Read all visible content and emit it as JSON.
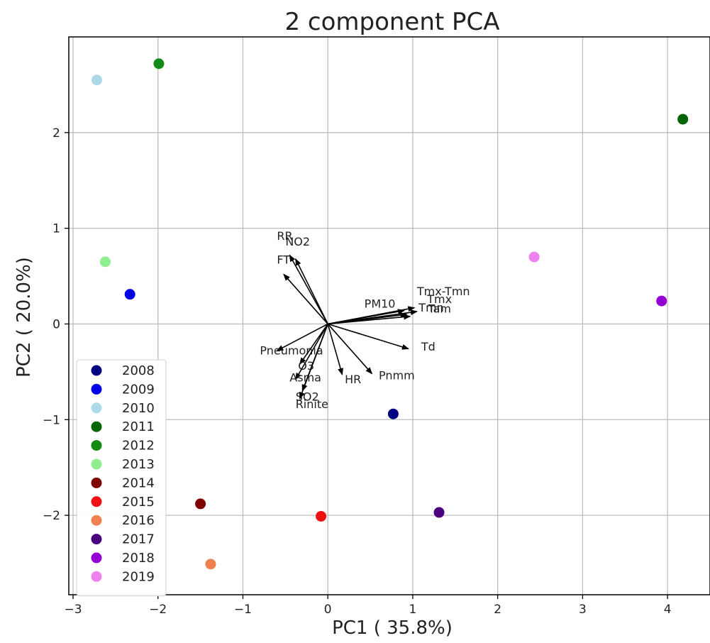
{
  "chart_data": {
    "type": "scatter",
    "title": "2 component PCA",
    "xlabel": "PC1 ( 35.8%)",
    "ylabel": "PC2 ( 20.0%)",
    "xlim": [
      -3.05,
      4.5
    ],
    "ylim": [
      -2.83,
      3.0
    ],
    "x_ticks": [
      -3,
      -2,
      -1,
      0,
      1,
      2,
      3,
      4
    ],
    "y_ticks": [
      -2,
      -1,
      0,
      1,
      2
    ],
    "grid": true,
    "legend_position": "bottom-left",
    "points": [
      {
        "label": "2008",
        "x": 0.77,
        "y": -0.94,
        "color": "#000080"
      },
      {
        "label": "2009",
        "x": -2.33,
        "y": 0.31,
        "color": "#0000e6"
      },
      {
        "label": "2010",
        "x": -2.72,
        "y": 2.55,
        "color": "#add8e6"
      },
      {
        "label": "2011",
        "x": 4.18,
        "y": 2.14,
        "color": "#006400"
      },
      {
        "label": "2012",
        "x": -1.99,
        "y": 2.72,
        "color": "#138a13"
      },
      {
        "label": "2013",
        "x": -2.62,
        "y": 0.65,
        "color": "#90ee90"
      },
      {
        "label": "2014",
        "x": -1.5,
        "y": -1.88,
        "color": "#800000"
      },
      {
        "label": "2015",
        "x": -0.08,
        "y": -2.01,
        "color": "#ee1111"
      },
      {
        "label": "2016",
        "x": -1.38,
        "y": -2.51,
        "color": "#f08050"
      },
      {
        "label": "2017",
        "x": 1.31,
        "y": -1.97,
        "color": "#4b0082"
      },
      {
        "label": "2018",
        "x": 3.93,
        "y": 0.24,
        "color": "#9400d3"
      },
      {
        "label": "2019",
        "x": 2.43,
        "y": 0.7,
        "color": "#ee82ee"
      }
    ],
    "loadings": [
      {
        "name": "RR",
        "x": -0.45,
        "y": 0.72
      },
      {
        "name": "NO2",
        "x": -0.38,
        "y": 0.68
      },
      {
        "name": "FT",
        "x": -0.52,
        "y": 0.52
      },
      {
        "name": "Tmx-Tmn",
        "x": 1.02,
        "y": 0.17
      },
      {
        "name": "Tmx",
        "x": 1.05,
        "y": 0.13
      },
      {
        "name": "PM10",
        "x": 0.9,
        "y": 0.14
      },
      {
        "name": "Tmn",
        "x": 0.93,
        "y": 0.1
      },
      {
        "name": "Tam",
        "x": 0.97,
        "y": 0.08
      },
      {
        "name": "Td",
        "x": 0.95,
        "y": -0.26
      },
      {
        "name": "Pneumonia",
        "x": -0.6,
        "y": -0.28
      },
      {
        "name": "O3",
        "x": -0.33,
        "y": -0.42
      },
      {
        "name": "Asma",
        "x": -0.38,
        "y": -0.58
      },
      {
        "name": "HR",
        "x": 0.17,
        "y": -0.53
      },
      {
        "name": "Pnmm",
        "x": 0.52,
        "y": -0.52
      },
      {
        "name": "SO2",
        "x": -0.3,
        "y": -0.7
      },
      {
        "name": "Rinite",
        "x": -0.33,
        "y": -0.78
      }
    ],
    "loading_label_offsets": {
      "RR": [
        -0.6,
        0.88
      ],
      "NO2": [
        -0.5,
        0.82
      ],
      "FT": [
        -0.6,
        0.63
      ],
      "Tmx-Tmn": [
        1.05,
        0.3
      ],
      "Tmx": [
        1.17,
        0.22
      ],
      "PM10": [
        0.43,
        0.17
      ],
      "Tmn": [
        1.07,
        0.13
      ],
      "Tam": [
        1.18,
        0.12
      ],
      "Td": [
        1.1,
        -0.28
      ],
      "Pneumonia": [
        -0.8,
        -0.32
      ],
      "O3": [
        -0.35,
        -0.48
      ],
      "Asma": [
        -0.45,
        -0.6
      ],
      "HR": [
        0.2,
        -0.62
      ],
      "Pnmm": [
        0.6,
        -0.58
      ],
      "SO2": [
        -0.38,
        -0.8
      ],
      "Rinite": [
        -0.38,
        -0.88
      ]
    }
  }
}
